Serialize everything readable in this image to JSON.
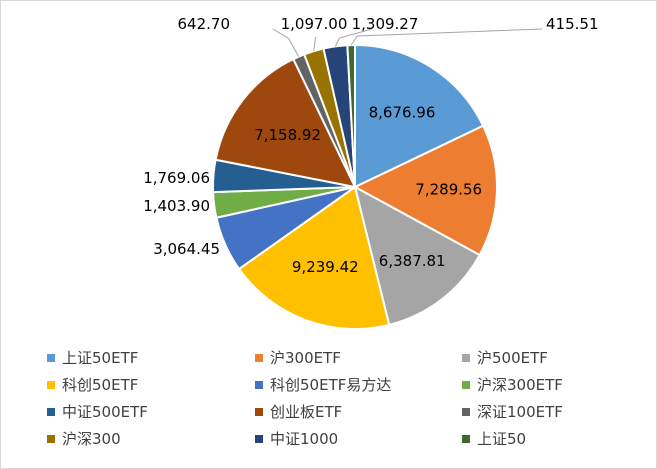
{
  "chart_data": {
    "type": "pie",
    "title": "",
    "legend_position": "bottom",
    "slices": [
      {
        "name": "上证50ETF",
        "value": 8676.96,
        "label": "8,676.96",
        "color": "#5B9BD5"
      },
      {
        "name": "沪300ETF",
        "value": 7289.56,
        "label": "7,289.56",
        "color": "#ED7D31"
      },
      {
        "name": "沪500ETF",
        "value": 6387.81,
        "label": "6,387.81",
        "color": "#A5A5A5"
      },
      {
        "name": "科创50ETF",
        "value": 9239.42,
        "label": "9,239.42",
        "color": "#FFC000"
      },
      {
        "name": "科创50ETF易方达",
        "value": 3064.45,
        "label": "3,064.45",
        "color": "#4472C4"
      },
      {
        "name": "沪深300ETF",
        "value": 1403.9,
        "label": "1,403.90",
        "color": "#70AD47"
      },
      {
        "name": "中证500ETF",
        "value": 1769.06,
        "label": "1,769.06",
        "color": "#255E91"
      },
      {
        "name": "创业板ETF",
        "value": 7158.92,
        "label": "7,158.92",
        "color": "#9E480E"
      },
      {
        "name": "深证100ETF",
        "value": 642.7,
        "label": "642.70",
        "color": "#636363"
      },
      {
        "name": "沪深300",
        "value": 1097.0,
        "label": "1,097.00",
        "color": "#997300"
      },
      {
        "name": "中证1000",
        "value": 1309.27,
        "label": "1,309.27",
        "color": "#264478"
      },
      {
        "name": "上证50",
        "value": 415.51,
        "label": "415.51",
        "color": "#43682B"
      }
    ]
  }
}
